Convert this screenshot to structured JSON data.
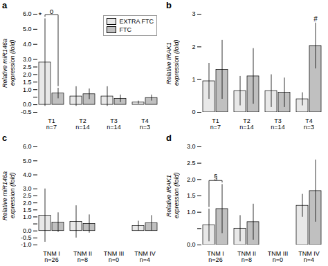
{
  "chart_data": [
    {
      "type": "bar",
      "title": "a",
      "ylabel": "Relative miR146a\nexpression (fold)",
      "categories": [
        "T1",
        "T2",
        "T3",
        "T4"
      ],
      "category_notes": [
        "n=7",
        "n=14",
        "n=14",
        "n=3"
      ],
      "series": [
        {
          "name": "EXTRA FTC",
          "color": "#e8e8e8",
          "values": [
            2.8,
            0.55,
            0.55,
            0.15
          ],
          "errors": [
            2.9,
            0.65,
            0.65,
            0.1
          ]
        },
        {
          "name": "FTC",
          "color": "#c0c0c0",
          "values": [
            0.75,
            0.7,
            0.4,
            0.45
          ],
          "errors": [
            0.35,
            0.35,
            0.25,
            0.2
          ]
        }
      ],
      "ylim": [
        -0.5,
        6
      ],
      "yticks": [
        -0.5,
        {
          "value": 0,
          "label": "0.0"
        },
        {
          "value": 0.5,
          "label": ""
        },
        {
          "value": 1,
          "label": "1.0"
        },
        1.5,
        {
          "value": 2,
          "label": "2.0"
        },
        2.5,
        {
          "value": 3,
          "label": "3.0"
        },
        {
          "value": 4,
          "label": "4.0"
        },
        {
          "value": 5,
          "label": "5.0"
        },
        {
          "value": 6,
          "label": "6.0"
        }
      ],
      "grid": false,
      "legend": "upper right",
      "annotations": [
        {
          "text": "*",
          "category": "T1",
          "series": "EXTRA FTC"
        },
        {
          "text": "o",
          "category": "T1",
          "bracket": [
            "EXTRA FTC",
            "FTC"
          ]
        }
      ]
    },
    {
      "type": "bar",
      "title": "b",
      "ylabel": "Relative IRAK1\nexpression (fold)",
      "categories": [
        "T1",
        "T2",
        "T3",
        "T4"
      ],
      "category_notes": [
        "n=7",
        "n=14",
        "n=14",
        "n=3"
      ],
      "series": [
        {
          "name": "EXTRA FTC",
          "color": "#e8e8e8",
          "values": [
            0.95,
            0.65,
            0.65,
            0.4
          ],
          "errors": [
            0.55,
            0.45,
            0.5,
            0.2
          ]
        },
        {
          "name": "FTC",
          "color": "#c0c0c0",
          "values": [
            1.3,
            1.1,
            0.6,
            2.03
          ],
          "errors": [
            0.9,
            0.85,
            0.45,
            0.7
          ]
        }
      ],
      "ylim": [
        0,
        3
      ],
      "yticks": [
        0,
        1,
        2,
        3
      ],
      "grid": false,
      "annotations": [
        {
          "text": "#",
          "category": "T4",
          "series": "FTC"
        }
      ]
    },
    {
      "type": "bar",
      "title": "c",
      "ylabel": "Relative miR146a\nexpression (fold)",
      "categories": [
        "TNM I",
        "TNM II",
        "TNM III",
        "TNM IV"
      ],
      "category_notes": [
        "n=26",
        "n=8",
        "n=0",
        "n=4"
      ],
      "series": [
        {
          "name": "EXTRA FTC",
          "color": "#e8e8e8",
          "values": [
            1.1,
            0.65,
            0.0,
            0.35
          ],
          "errors": [
            1.9,
            1.15,
            0.0,
            0.35
          ]
        },
        {
          "name": "FTC",
          "color": "#c0c0c0",
          "values": [
            0.6,
            0.5,
            0.0,
            0.55
          ],
          "errors": [
            0.7,
            0.65,
            0.0,
            0.55
          ]
        }
      ],
      "ylim": [
        -1,
        6
      ],
      "yticks": [
        {
          "value": -1,
          "label": "-1.0"
        },
        -0.5,
        {
          "value": 0,
          "label": "0.0"
        },
        {
          "value": 0.5,
          "label": ""
        },
        {
          "value": 1,
          "label": "1.0"
        },
        1.5,
        {
          "value": 2,
          "label": "2.0"
        },
        2.5,
        {
          "value": 3,
          "label": "3.0"
        },
        {
          "value": 4,
          "label": "4.0"
        },
        {
          "value": 5,
          "label": "5.0"
        },
        {
          "value": 6,
          "label": "6.0"
        }
      ],
      "grid": false
    },
    {
      "type": "bar",
      "title": "d",
      "ylabel": "Relative IRAK1\nexpression (fold)",
      "categories": [
        "TNM I",
        "TNM II",
        "TNM III",
        "TNM IV"
      ],
      "category_notes": [
        "n=26",
        "n=8",
        "n=0",
        "n=4"
      ],
      "series": [
        {
          "name": "EXTRA FTC",
          "color": "#e8e8e8",
          "values": [
            0.6,
            0.5,
            0.0,
            1.2
          ],
          "errors": [
            0.5,
            0.4,
            0.0,
            0.35
          ]
        },
        {
          "name": "FTC",
          "color": "#c0c0c0",
          "values": [
            1.1,
            0.7,
            0.0,
            1.65
          ],
          "errors": [
            0.75,
            0.55,
            0.0,
            0.95
          ]
        }
      ],
      "ylim": [
        0,
        3.0
      ],
      "yticks": [
        {
          "value": 0,
          "label": "0.0"
        },
        {
          "value": 0.5,
          "label": ""
        },
        {
          "value": 1,
          "label": "1.0"
        },
        1.5,
        {
          "value": 2,
          "label": "2.0"
        },
        2.5,
        {
          "value": 3,
          "label": "3.0"
        }
      ],
      "grid": false,
      "annotations": [
        {
          "text": "§",
          "category": "TNM I",
          "bracket": [
            "EXTRA FTC",
            "FTC"
          ]
        }
      ]
    }
  ]
}
